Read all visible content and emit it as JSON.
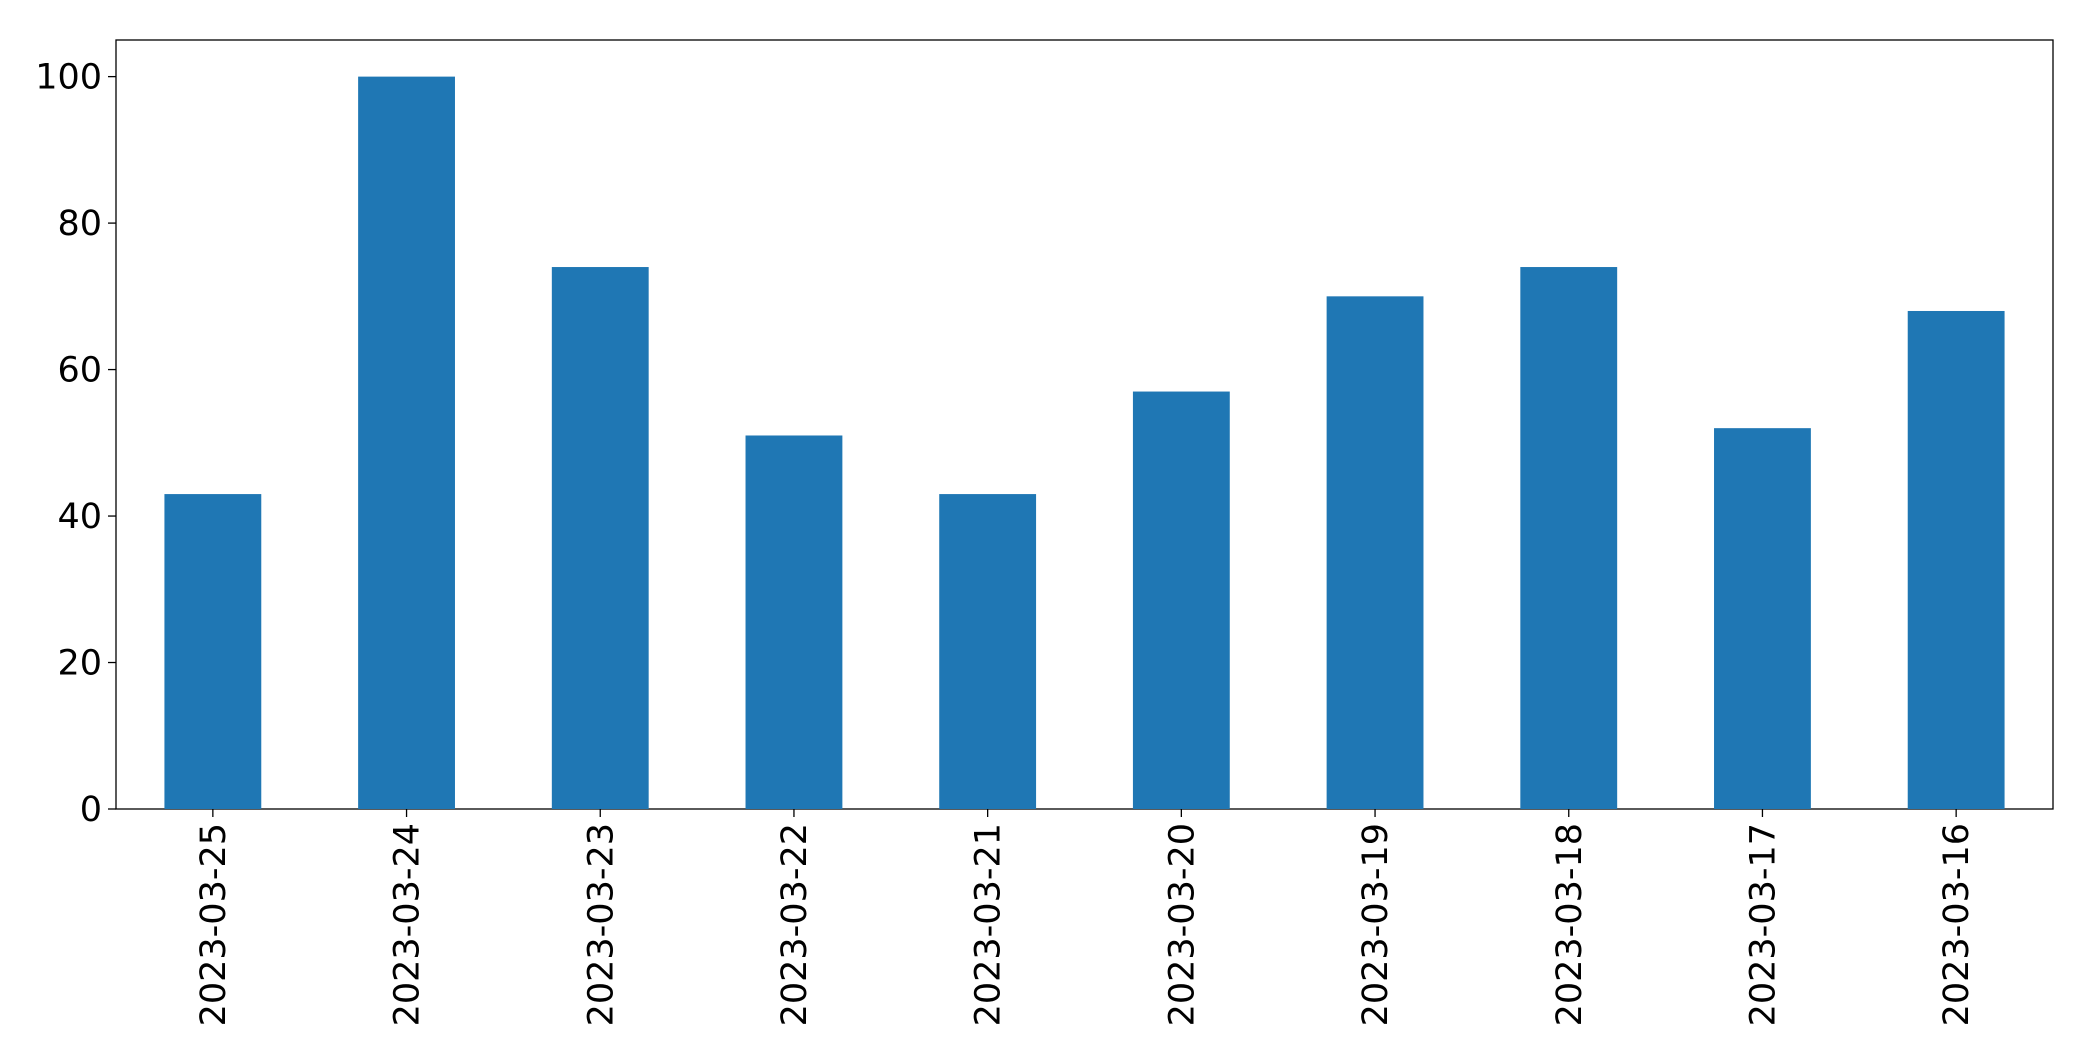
{
  "chart_data": {
    "type": "bar",
    "categories": [
      "2023-03-25",
      "2023-03-24",
      "2023-03-23",
      "2023-03-22",
      "2023-03-21",
      "2023-03-20",
      "2023-03-19",
      "2023-03-18",
      "2023-03-17",
      "2023-03-16"
    ],
    "values": [
      43,
      100,
      74,
      51,
      43,
      57,
      70,
      74,
      52,
      68
    ],
    "color": "#1f77b4",
    "ylim": [
      0,
      105
    ],
    "yticks": [
      0,
      20,
      40,
      60,
      80,
      100
    ],
    "grid": false
  }
}
